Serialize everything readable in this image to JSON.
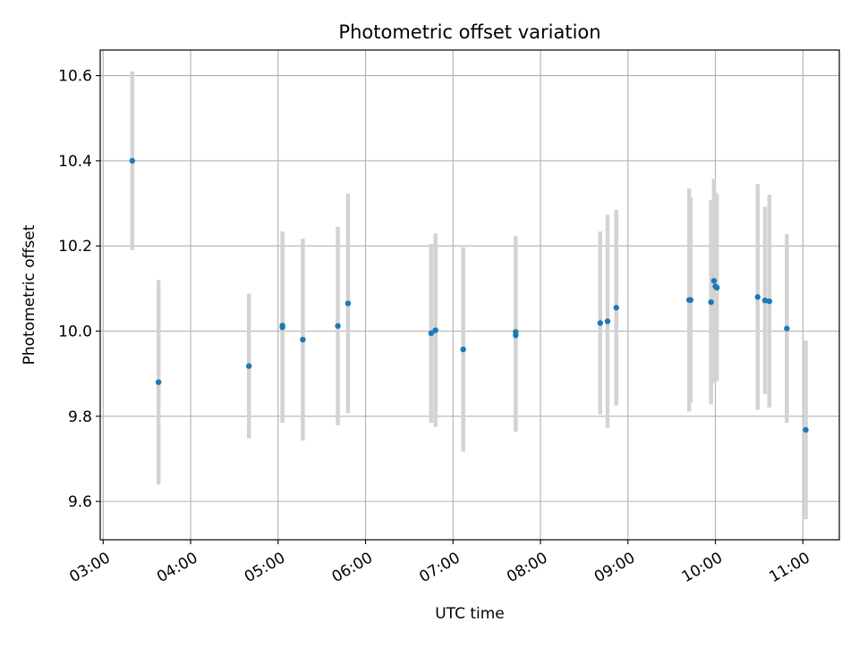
{
  "chart_data": {
    "type": "scatter",
    "title": "Photometric offset variation",
    "xlabel": "UTC time",
    "ylabel": "Photometric offset",
    "x_ticks": [
      "03:00",
      "04:00",
      "05:00",
      "06:00",
      "07:00",
      "08:00",
      "09:00",
      "10:00",
      "11:00"
    ],
    "y_ticks": [
      "9.6",
      "9.8",
      "10.0",
      "10.2",
      "10.4",
      "10.6"
    ],
    "xlim": [
      "02:58",
      "11:25"
    ],
    "ylim": [
      9.51,
      10.66
    ],
    "grid": true,
    "colors": {
      "point": "#1f77b4",
      "errorbar": "#d3d3d3",
      "grid": "#b0b0b0"
    },
    "series": [
      {
        "x": [
          "03:20",
          "03:38",
          "04:40",
          "05:03",
          "05:03",
          "05:17",
          "05:41",
          "05:48",
          "06:45",
          "06:48",
          "07:07",
          "07:43",
          "07:43",
          "08:41",
          "08:46",
          "08:52",
          "09:42",
          "09:43",
          "09:57",
          "09:59",
          "10:00",
          "10:01",
          "10:29",
          "10:34",
          "10:37",
          "10:49",
          "11:02"
        ],
        "y": [
          10.4,
          9.88,
          9.918,
          10.013,
          10.009,
          9.98,
          10.012,
          10.065,
          9.995,
          10.002,
          9.957,
          9.99,
          9.998,
          10.019,
          10.023,
          10.055,
          10.073,
          10.073,
          10.068,
          10.118,
          10.105,
          10.102,
          10.08,
          10.072,
          10.07,
          10.006,
          9.768
        ],
        "yerr": [
          0.21,
          0.24,
          0.17,
          0.22,
          0.225,
          0.237,
          0.233,
          0.258,
          0.21,
          0.227,
          0.24,
          0.226,
          0.225,
          0.215,
          0.25,
          0.23,
          0.262,
          0.24,
          0.24,
          0.24,
          0.22,
          0.22,
          0.265,
          0.22,
          0.25,
          0.222,
          0.21
        ]
      }
    ]
  }
}
